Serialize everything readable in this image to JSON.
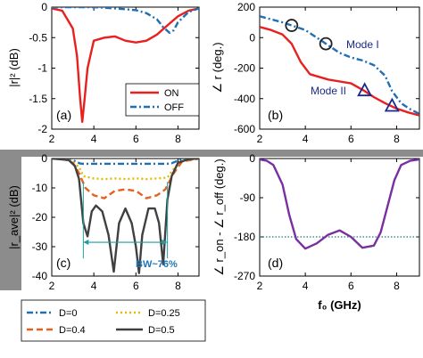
{
  "chart_data": [
    {
      "panel": "(a)",
      "type": "line",
      "xlabel": "",
      "ylabel": "|r|² (dB)",
      "xlim": [
        2,
        9
      ],
      "ylim": [
        -2,
        0
      ],
      "xticks": [
        "2",
        "4",
        "6",
        "8"
      ],
      "yticks": [
        "0",
        "-0.5",
        "-1",
        "-1.5",
        "-2"
      ],
      "legend": {
        "placement": "lower-right",
        "entries": [
          "ON",
          "OFF"
        ]
      },
      "series": [
        {
          "name": "ON",
          "color": "#e8201f",
          "style": "solid",
          "x": [
            2.0,
            2.5,
            3.0,
            3.2,
            3.35,
            3.45,
            3.55,
            3.7,
            4.0,
            4.5,
            5.0,
            5.5,
            6.0,
            6.5,
            7.0,
            7.5,
            8.0,
            8.5,
            9.0
          ],
          "y": [
            -0.02,
            -0.06,
            -0.35,
            -0.8,
            -1.5,
            -1.88,
            -1.55,
            -1.0,
            -0.55,
            -0.5,
            -0.48,
            -0.55,
            -0.58,
            -0.55,
            -0.45,
            -0.3,
            -0.15,
            -0.06,
            -0.02
          ]
        },
        {
          "name": "OFF",
          "color": "#1f6fb4",
          "style": "dashdot",
          "x": [
            2.0,
            3.0,
            4.0,
            5.0,
            6.0,
            6.5,
            7.0,
            7.3,
            7.6,
            7.8,
            8.0,
            8.5,
            9.0
          ],
          "y": [
            0.0,
            0.0,
            0.0,
            -0.02,
            -0.05,
            -0.1,
            -0.2,
            -0.33,
            -0.42,
            -0.38,
            -0.25,
            -0.08,
            -0.02
          ]
        }
      ]
    },
    {
      "panel": "(b)",
      "type": "line",
      "xlabel": "",
      "ylabel": "∠ r (deg.)",
      "xlim": [
        2,
        9
      ],
      "ylim": [
        -600,
        200
      ],
      "xticks": [
        "2",
        "4",
        "6",
        "8"
      ],
      "yticks": [
        "200",
        "0",
        "-200",
        "-400",
        "-600"
      ],
      "annotations": [
        "Mode I",
        "Mode II"
      ],
      "markers": [
        {
          "mode": "Mode I",
          "shape": "circle",
          "x": [
            3.4,
            4.9
          ]
        },
        {
          "mode": "Mode II",
          "shape": "triangle",
          "x": [
            6.6,
            7.8
          ]
        }
      ],
      "series": [
        {
          "name": "ON",
          "color": "#e8201f",
          "style": "solid",
          "x": [
            2.0,
            2.5,
            3.0,
            3.4,
            3.8,
            4.2,
            5.0,
            6.0,
            6.6,
            7.0,
            7.5,
            8.0,
            8.5,
            9.0
          ],
          "y": [
            70,
            50,
            20,
            -40,
            -160,
            -240,
            -275,
            -300,
            -350,
            -390,
            -430,
            -465,
            -490,
            -510
          ]
        },
        {
          "name": "OFF",
          "color": "#1f6fb4",
          "style": "dashdot",
          "x": [
            2.0,
            3.0,
            4.0,
            4.9,
            5.5,
            6.0,
            6.5,
            7.0,
            7.5,
            7.8,
            8.2,
            8.6,
            9.0
          ],
          "y": [
            140,
            100,
            50,
            -40,
            -100,
            -130,
            -150,
            -180,
            -250,
            -350,
            -430,
            -470,
            -500
          ]
        }
      ]
    },
    {
      "panel": "(c)",
      "type": "line",
      "xlabel": "f₀ (GHz)",
      "ylabel": "|r_ave|² (dB)",
      "xlim": [
        2,
        9
      ],
      "ylim": [
        -40,
        0
      ],
      "xticks": [
        "2",
        "4",
        "6",
        "8"
      ],
      "yticks": [
        "0",
        "-10",
        "-20",
        "-30",
        "-40"
      ],
      "annotations": [
        "BW~76%"
      ],
      "bandwidth": [
        3.5,
        7.5
      ],
      "series": [
        {
          "name": "D=0",
          "color": "#1f6fb4",
          "style": "dashdot",
          "x": [
            2.0,
            2.6,
            3.0,
            3.2,
            3.35,
            3.5,
            4.0,
            5.0,
            6.0,
            7.0,
            7.5,
            7.7,
            7.9,
            8.2,
            9.0
          ],
          "y": [
            0,
            -0.1,
            -0.5,
            -1.2,
            -1.7,
            -1.8,
            -1.8,
            -1.8,
            -1.8,
            -1.8,
            -1.8,
            -1.6,
            -1.0,
            -0.3,
            0
          ]
        },
        {
          "name": "D=0.25",
          "color": "#e6b800",
          "style": "dotted",
          "x": [
            2.0,
            2.6,
            3.0,
            3.3,
            3.5,
            4.0,
            4.5,
            5.0,
            5.5,
            6.0,
            6.5,
            7.0,
            7.5,
            7.8,
            8.2,
            9.0
          ],
          "y": [
            0,
            -0.1,
            -1.0,
            -3.0,
            -6.0,
            -6.8,
            -7.0,
            -6.8,
            -7.0,
            -6.8,
            -7.0,
            -6.8,
            -6.5,
            -3.5,
            -0.8,
            0
          ]
        },
        {
          "name": "D=0.4",
          "color": "#e8601c",
          "style": "dashed",
          "x": [
            2.0,
            2.6,
            3.0,
            3.3,
            3.6,
            4.0,
            4.5,
            5.0,
            5.5,
            6.0,
            6.5,
            7.0,
            7.4,
            7.8,
            8.2,
            9.0
          ],
          "y": [
            0,
            -0.2,
            -1.5,
            -5.0,
            -10.0,
            -12.5,
            -13.5,
            -11.0,
            -10.5,
            -11.0,
            -13.5,
            -12.5,
            -10.5,
            -5.0,
            -1.0,
            0
          ]
        },
        {
          "name": "D=0.5",
          "color": "#404040",
          "style": "solid",
          "x": [
            2.0,
            2.8,
            3.1,
            3.3,
            3.5,
            3.7,
            3.9,
            4.1,
            4.4,
            4.7,
            4.95,
            5.2,
            5.5,
            5.8,
            6.0,
            6.15,
            6.3,
            6.6,
            6.9,
            7.1,
            7.3,
            7.5,
            7.7,
            8.0,
            8.5,
            9.0
          ],
          "y": [
            0,
            -0.5,
            -2.5,
            -7.0,
            -22.0,
            -26.5,
            -18.0,
            -16.0,
            -18.0,
            -26.0,
            -38.5,
            -22.0,
            -17.0,
            -22.0,
            -30.0,
            -39.0,
            -26.0,
            -17.0,
            -17.0,
            -22.0,
            -36.0,
            -14.0,
            -6.0,
            -1.5,
            -0.2,
            0
          ]
        }
      ]
    },
    {
      "panel": "(d)",
      "type": "line",
      "xlabel": "f₀ (GHz)",
      "ylabel": "∠ r_on - ∠ r_off (deg.)",
      "xlim": [
        2,
        9
      ],
      "ylim": [
        -270,
        0
      ],
      "xticks": [
        "2",
        "4",
        "6",
        "8"
      ],
      "yticks": [
        "0",
        "-90",
        "-180",
        "-270"
      ],
      "reference_line": {
        "y": -180,
        "color": "#1a7a7a",
        "style": "dotted"
      },
      "series": [
        {
          "name": "",
          "color": "#7a2fa0",
          "style": "solid",
          "x": [
            2.0,
            2.3,
            2.6,
            3.0,
            3.3,
            3.6,
            4.0,
            4.5,
            5.0,
            5.5,
            6.0,
            6.5,
            7.0,
            7.3,
            7.6,
            7.9,
            8.2,
            8.6,
            9.0
          ],
          "y": [
            -2,
            -5,
            -15,
            -60,
            -130,
            -185,
            -207,
            -195,
            -175,
            -165,
            -180,
            -205,
            -200,
            -170,
            -110,
            -50,
            -15,
            -5,
            -2
          ]
        }
      ]
    }
  ],
  "legend_bottom": {
    "entries": [
      {
        "label": "D=0",
        "color": "#1f6fb4",
        "style": "dashdot"
      },
      {
        "label": "D=0.25",
        "color": "#e6b800",
        "style": "dotted"
      },
      {
        "label": "D=0.4",
        "color": "#e8601c",
        "style": "dashed"
      },
      {
        "label": "D=0.5",
        "color": "#404040",
        "style": "solid"
      }
    ]
  },
  "panel_tags": [
    "(a)",
    "(b)",
    "(c)",
    "(d)"
  ],
  "legend_a": [
    "ON",
    "OFF"
  ],
  "mode_labels": [
    "Mode I",
    "Mode II"
  ],
  "bw_label": "BW~76%",
  "colors": {
    "gray_band": "#8c8c8c"
  }
}
